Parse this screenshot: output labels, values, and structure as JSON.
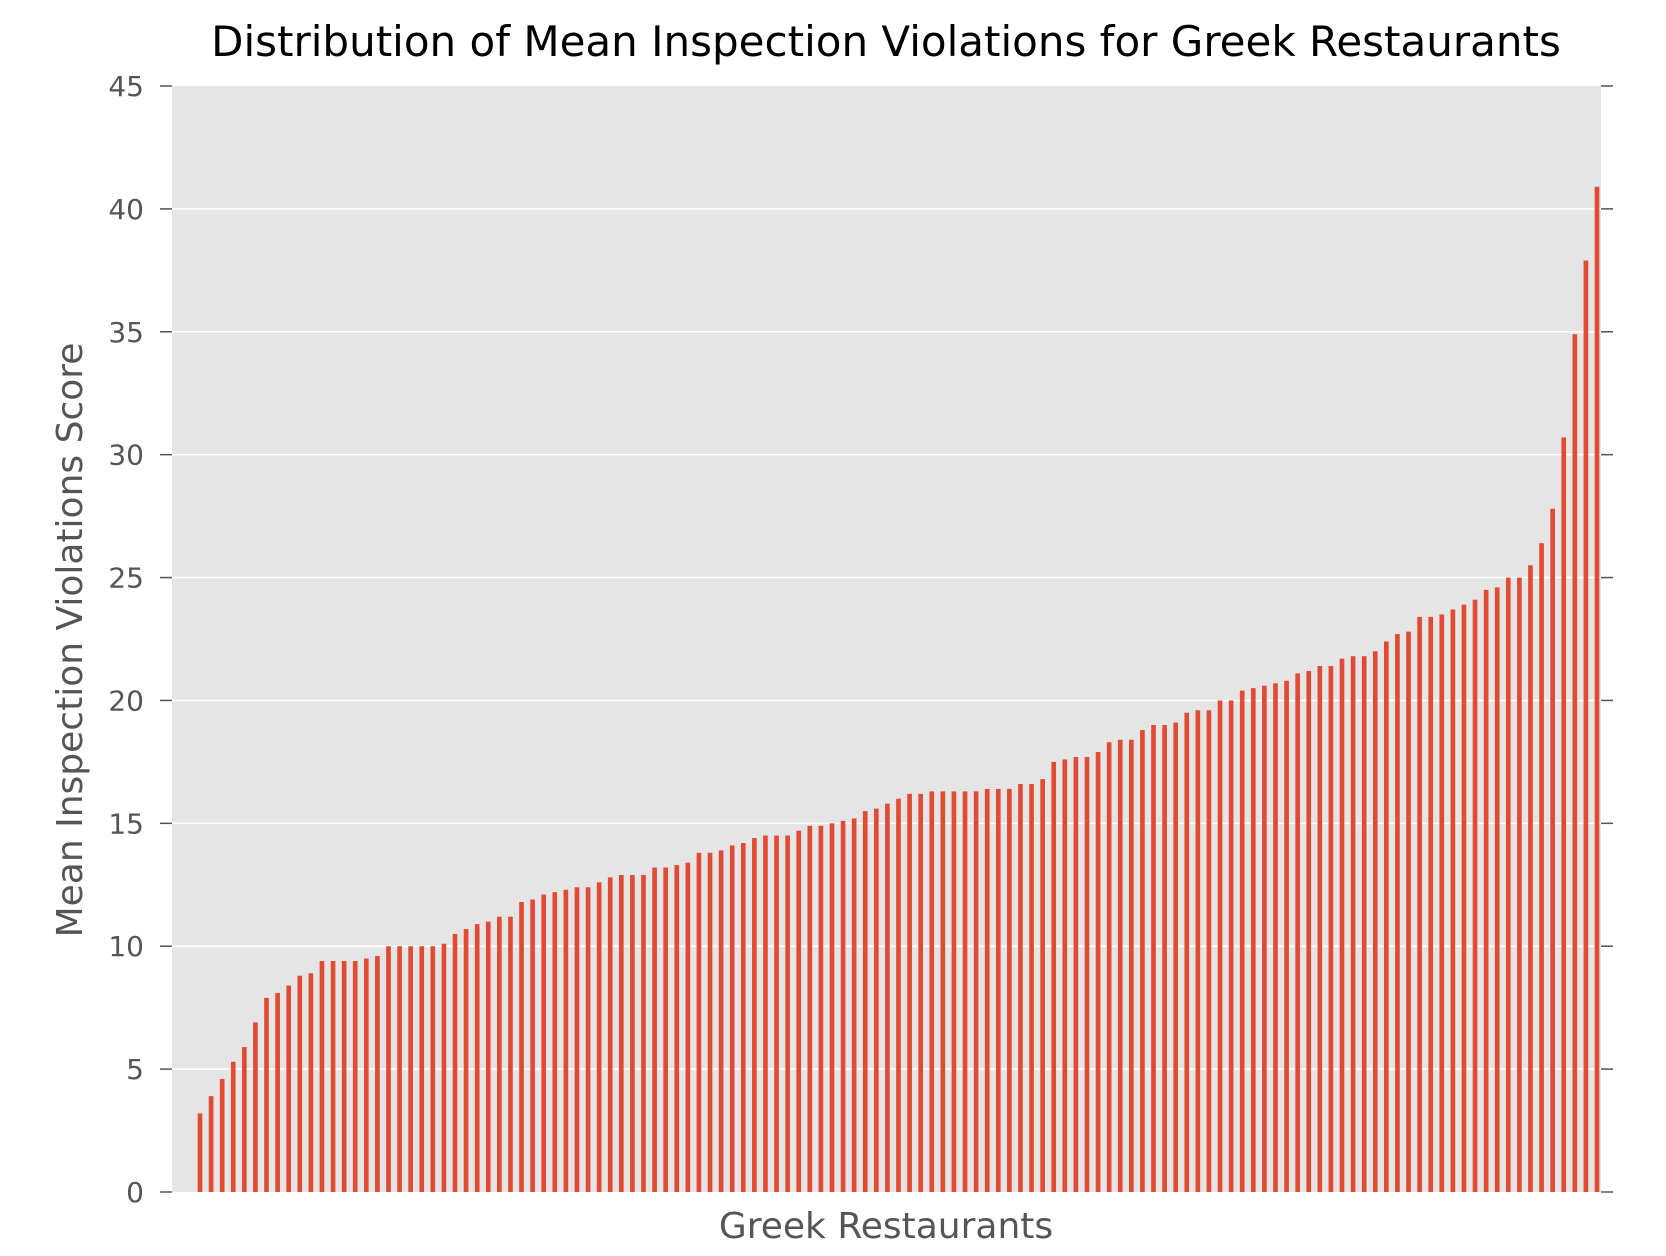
{
  "chart_data": {
    "type": "bar",
    "title": "Distribution of Mean Inspection Violations for Greek Restaurants",
    "xlabel": "Greek Restaurants",
    "ylabel": "Mean Inspection Violations Score",
    "ylim": [
      0,
      45
    ],
    "yticks": [
      "0",
      "5",
      "10",
      "15",
      "20",
      "25",
      "30",
      "35",
      "40",
      "45"
    ],
    "grid": true,
    "bar_color": "#e24a33",
    "background_color": "#e5e5e5",
    "grid_color": "#ffffff",
    "values": [
      3.2,
      3.9,
      4.6,
      5.3,
      5.9,
      6.9,
      7.9,
      8.1,
      8.4,
      8.8,
      8.9,
      9.4,
      9.4,
      9.4,
      9.4,
      9.5,
      9.6,
      10.0,
      10.0,
      10.0,
      10.0,
      10.0,
      10.1,
      10.5,
      10.7,
      10.9,
      11.0,
      11.2,
      11.2,
      11.8,
      11.9,
      12.1,
      12.2,
      12.3,
      12.4,
      12.4,
      12.6,
      12.8,
      12.9,
      12.9,
      12.9,
      13.2,
      13.2,
      13.3,
      13.4,
      13.8,
      13.8,
      13.9,
      14.1,
      14.2,
      14.4,
      14.5,
      14.5,
      14.5,
      14.7,
      14.9,
      14.9,
      15.0,
      15.1,
      15.2,
      15.5,
      15.6,
      15.8,
      16.0,
      16.2,
      16.2,
      16.3,
      16.3,
      16.3,
      16.3,
      16.3,
      16.4,
      16.4,
      16.4,
      16.6,
      16.6,
      16.8,
      17.5,
      17.6,
      17.7,
      17.7,
      17.9,
      18.3,
      18.4,
      18.4,
      18.8,
      19.0,
      19.0,
      19.1,
      19.5,
      19.6,
      19.6,
      20.0,
      20.0,
      20.4,
      20.5,
      20.6,
      20.7,
      20.8,
      21.1,
      21.2,
      21.4,
      21.4,
      21.7,
      21.8,
      21.8,
      22.0,
      22.4,
      22.7,
      22.8,
      23.4,
      23.4,
      23.5,
      23.7,
      23.9,
      24.1,
      24.5,
      24.6,
      25.0,
      25.0,
      25.5,
      26.4,
      27.8,
      30.7,
      34.9,
      37.9,
      40.9
    ]
  }
}
